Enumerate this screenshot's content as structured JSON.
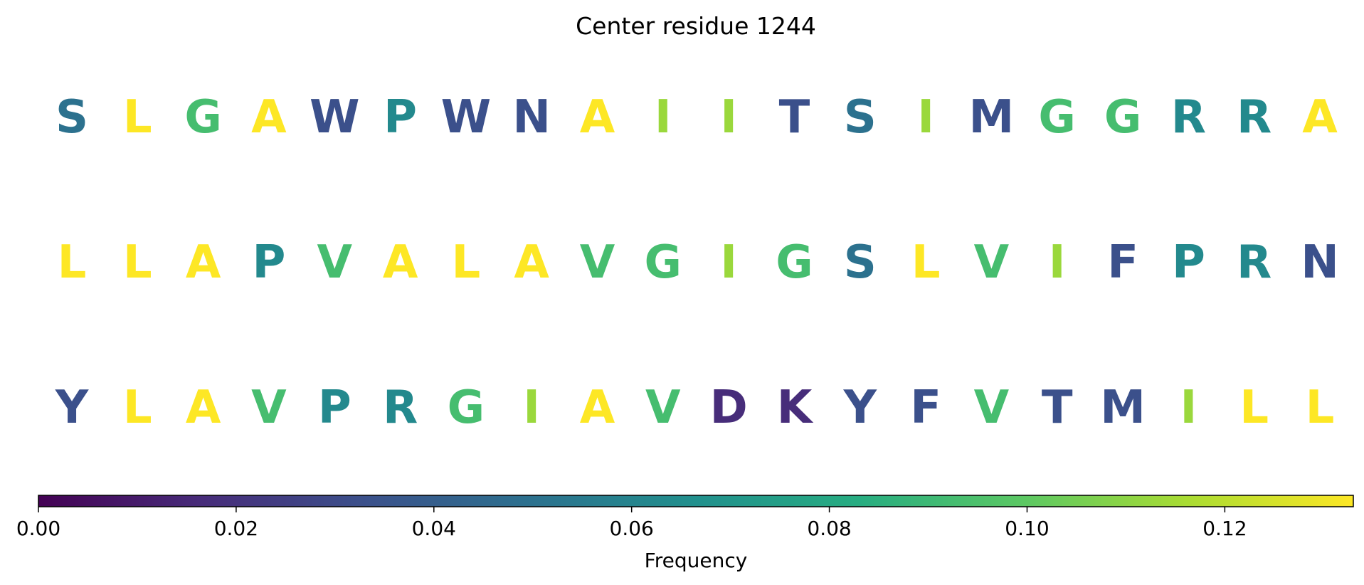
{
  "chart_data": {
    "type": "heatmap",
    "title": "Center residue 1244",
    "rows": [
      {
        "letters": [
          "S",
          "L",
          "G",
          "A",
          "W",
          "P",
          "W",
          "N",
          "A",
          "I",
          "I",
          "T",
          "S",
          "I",
          "M",
          "G",
          "G",
          "R",
          "R",
          "A"
        ],
        "values": [
          0.05,
          0.133,
          0.093,
          0.133,
          0.033,
          0.063,
          0.033,
          0.033,
          0.133,
          0.113,
          0.113,
          0.033,
          0.05,
          0.113,
          0.033,
          0.093,
          0.093,
          0.063,
          0.063,
          0.133
        ]
      },
      {
        "letters": [
          "L",
          "L",
          "A",
          "P",
          "V",
          "A",
          "L",
          "A",
          "V",
          "G",
          "I",
          "G",
          "S",
          "L",
          "V",
          "I",
          "F",
          "P",
          "R",
          "N"
        ],
        "values": [
          0.133,
          0.133,
          0.133,
          0.063,
          0.093,
          0.133,
          0.133,
          0.133,
          0.093,
          0.093,
          0.113,
          0.093,
          0.05,
          0.133,
          0.093,
          0.113,
          0.033,
          0.063,
          0.063,
          0.033
        ]
      },
      {
        "letters": [
          "Y",
          "L",
          "A",
          "V",
          "P",
          "R",
          "G",
          "I",
          "A",
          "V",
          "D",
          "K",
          "Y",
          "F",
          "V",
          "T",
          "M",
          "I",
          "L",
          "L"
        ],
        "values": [
          0.033,
          0.133,
          0.133,
          0.093,
          0.063,
          0.063,
          0.093,
          0.113,
          0.133,
          0.093,
          0.017,
          0.017,
          0.033,
          0.033,
          0.093,
          0.033,
          0.033,
          0.113,
          0.133,
          0.133
        ]
      }
    ],
    "colorbar": {
      "label": "Frequency",
      "min": 0.0,
      "max": 0.133,
      "ticks": [
        0.0,
        0.02,
        0.04,
        0.06,
        0.08,
        0.1,
        0.12
      ],
      "tick_labels": [
        "0.00",
        "0.02",
        "0.04",
        "0.06",
        "0.08",
        "0.10",
        "0.12"
      ],
      "colormap": "viridis",
      "orientation": "horizontal",
      "position": "bottom"
    }
  }
}
